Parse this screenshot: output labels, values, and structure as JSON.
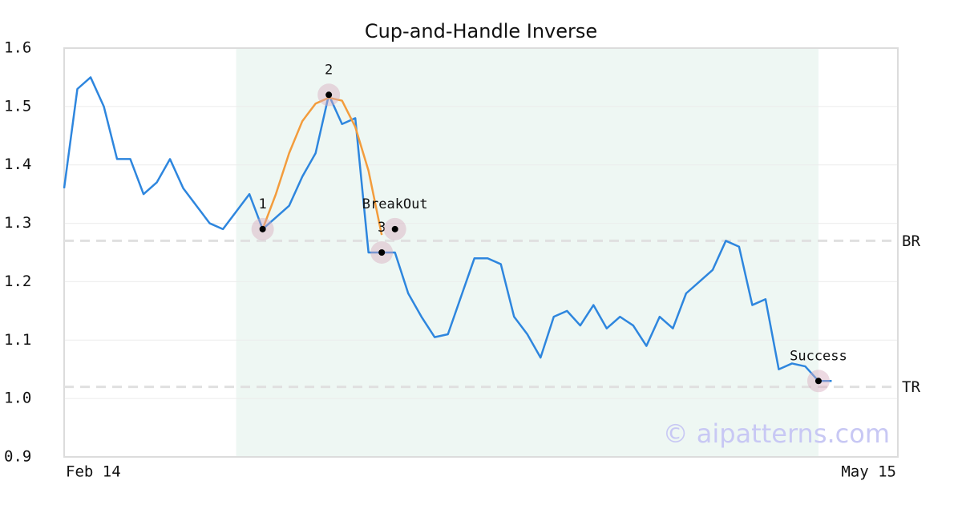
{
  "chart_data": {
    "type": "line",
    "title": "Cup-and-Handle Inverse",
    "categories": [
      "Feb 14",
      null,
      null,
      null,
      null,
      null,
      null,
      null,
      null,
      null,
      null,
      null,
      null,
      null,
      null,
      null,
      null,
      null,
      null,
      null,
      null,
      null,
      null,
      null,
      null,
      null,
      null,
      null,
      null,
      null,
      null,
      null,
      null,
      null,
      null,
      null,
      null,
      null,
      null,
      null,
      null,
      null,
      null,
      null,
      null,
      null,
      null,
      null,
      null,
      null,
      null,
      null,
      null,
      null,
      null,
      null,
      null,
      null,
      null,
      null,
      null,
      null,
      null,
      "May 15"
    ],
    "series": [
      {
        "color": "#2e86de",
        "values": [
          1.36,
          1.53,
          1.55,
          1.5,
          1.41,
          1.41,
          1.35,
          1.37,
          1.41,
          1.36,
          1.33,
          1.3,
          1.29,
          1.32,
          1.35,
          1.29,
          1.31,
          1.33,
          1.38,
          1.42,
          1.52,
          1.47,
          1.48,
          1.25,
          1.25,
          1.25,
          1.18,
          1.14,
          1.105,
          1.11,
          1.175,
          1.24,
          1.24,
          1.23,
          1.14,
          1.11,
          1.07,
          1.14,
          1.15,
          1.125,
          1.16,
          1.12,
          1.14,
          1.125,
          1.09,
          1.14,
          1.12,
          1.18,
          1.2,
          1.22,
          1.27,
          1.26,
          1.16,
          1.17,
          1.05,
          1.06,
          1.055,
          1.03,
          1.03,
          null,
          null,
          null,
          null,
          null
        ]
      },
      {
        "color": "#f39c3c",
        "values": [
          null,
          null,
          null,
          null,
          null,
          null,
          null,
          null,
          null,
          null,
          null,
          null,
          null,
          null,
          null,
          1.29,
          1.35,
          1.42,
          1.475,
          1.505,
          1.515,
          1.51,
          1.465,
          1.39,
          1.28,
          null,
          null,
          null,
          null,
          null,
          null,
          null,
          null,
          null,
          null,
          null,
          null,
          null,
          null,
          null,
          null,
          null,
          null,
          null,
          null,
          null,
          null,
          null,
          null,
          null,
          null,
          null,
          null,
          null,
          null,
          null,
          null,
          null,
          null,
          null,
          null,
          null,
          null,
          null
        ]
      }
    ],
    "ylim": [
      0.9,
      1.6
    ],
    "yticks": [
      0.9,
      {
        "value": 1,
        "label": "1.0"
      },
      1.1,
      1.2,
      1.3,
      1.4,
      1.5,
      1.6
    ],
    "grid": true,
    "shade": {
      "from": 13,
      "to": 57,
      "color": "#eef7f3"
    },
    "levels": [
      {
        "label": "BR",
        "value": 1.27
      },
      {
        "label": "TR",
        "value": 1.02
      }
    ],
    "points": [
      {
        "label": "1",
        "index": 15,
        "value": 1.29
      },
      {
        "label": "2",
        "index": 20,
        "value": 1.52
      },
      {
        "label": "3",
        "index": 24,
        "value": 1.25
      },
      {
        "label": "BreakOut",
        "index": 25,
        "value": 1.29
      },
      {
        "label": "Success",
        "index": 57,
        "value": 1.03
      }
    ],
    "watermark": "© aipatterns.com"
  }
}
